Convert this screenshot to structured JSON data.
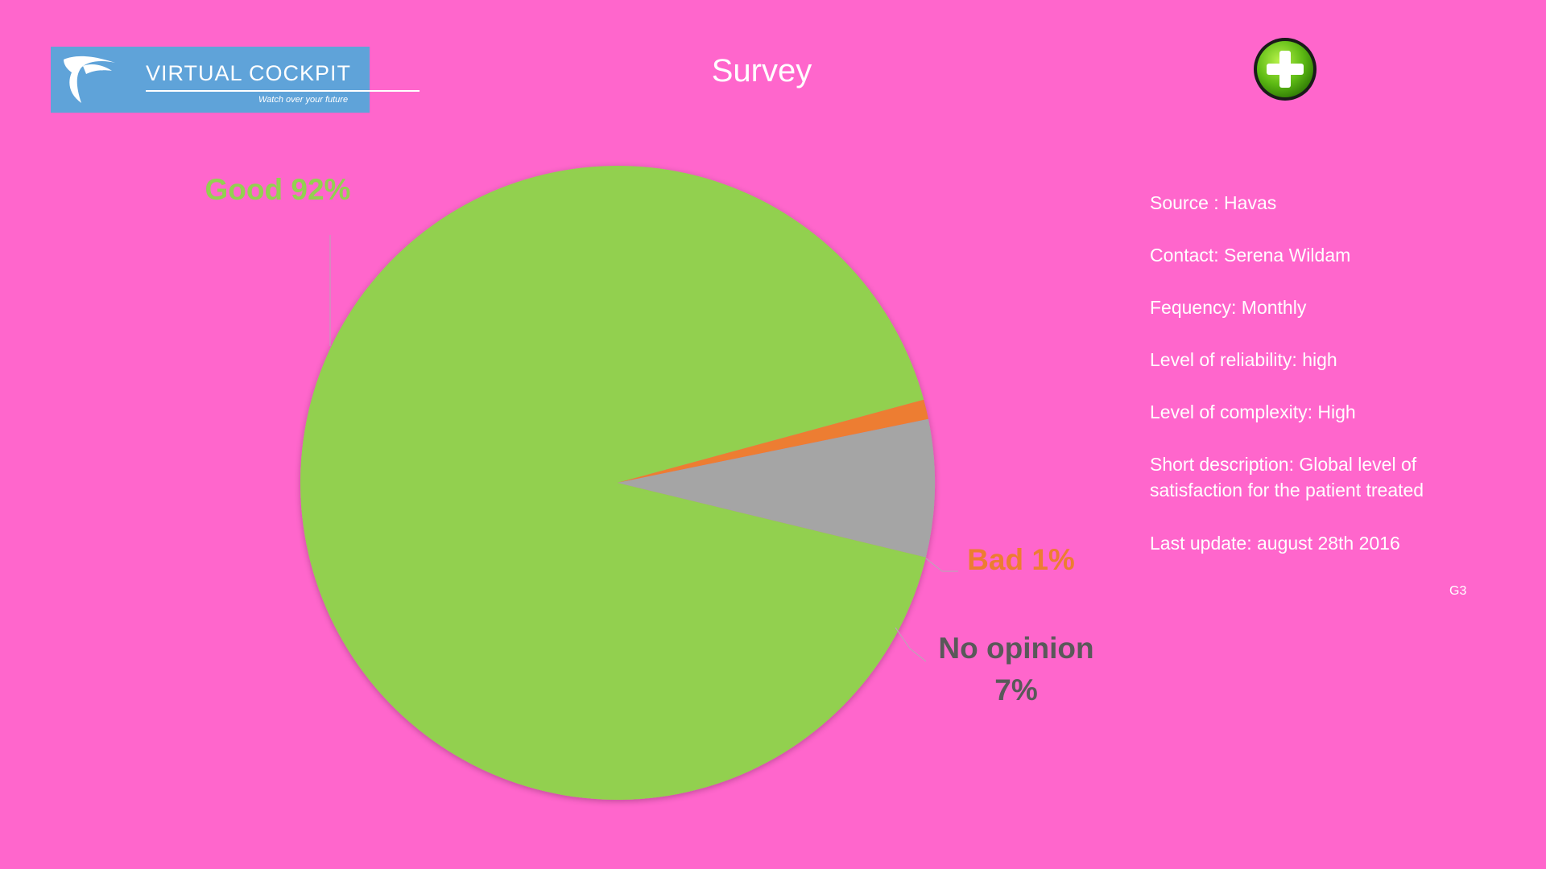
{
  "logo": {
    "brand": "VIRTUAL COCKPIT",
    "tagline": "Watch over your future"
  },
  "title": "Survey",
  "add_button": {
    "icon": "plus-icon"
  },
  "info": {
    "source": "Source : Havas",
    "contact": "Contact: Serena Wildam",
    "frequency": "Fequency: Monthly",
    "reliability": "Level of reliability: high",
    "complexity": "Level of complexity:  High",
    "description_line1": "Short description:  Global level of",
    "description_line2": "satisfaction for the patient treated",
    "last_update": "Last update:  august 28th  2016"
  },
  "code": "G3",
  "colors": {
    "background": "#FF66CC",
    "good": "#92D050",
    "bad": "#ED7D31",
    "no_opinion": "#A5A5A5"
  },
  "chart_data": {
    "type": "pie",
    "title": "",
    "categories": [
      "Good",
      "Bad",
      "No opinion"
    ],
    "values": [
      92,
      1,
      7
    ],
    "labels": [
      "Good 92%",
      "Bad  1%",
      "No opinion 7%"
    ],
    "label_lines": [
      [
        "Good 92%"
      ],
      [
        "Bad  1%"
      ],
      [
        "No opinion",
        "7%"
      ]
    ],
    "colors": [
      "#92D050",
      "#ED7D31",
      "#A5A5A5"
    ],
    "label_colors": [
      "#92D050",
      "#ED7D31",
      "#595959"
    ],
    "legend": "none",
    "start_angle_deg_from_top_clockwise": 103.6
  }
}
